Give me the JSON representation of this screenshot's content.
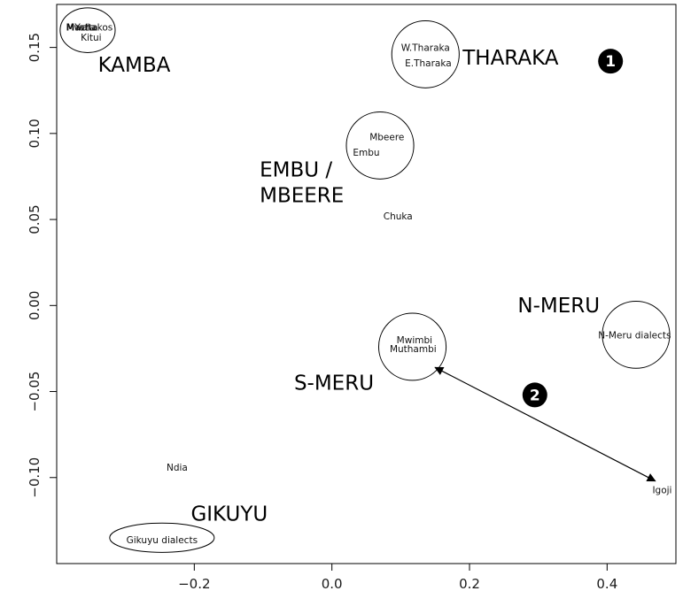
{
  "chart_data": {
    "type": "scatter",
    "title": "",
    "xlabel": "",
    "ylabel": "",
    "xlim": [
      -0.4,
      0.5
    ],
    "ylim": [
      -0.15,
      0.175
    ],
    "x_ticks": [
      -0.2,
      0.0,
      0.2,
      0.4
    ],
    "x_tick_labels": [
      "−0.2",
      "0.0",
      "0.2",
      "0.4"
    ],
    "y_ticks": [
      -0.1,
      -0.05,
      0.0,
      0.05,
      0.1,
      0.15
    ],
    "y_tick_labels": [
      "−0.10",
      "−0.05",
      "0.00",
      "0.05",
      "0.10",
      "0.15"
    ],
    "grid": false,
    "points": [
      {
        "label": "Mwala",
        "x": -0.365,
        "y": 0.162
      },
      {
        "label": "Yatta",
        "x": -0.357,
        "y": 0.162
      },
      {
        "label": "Machakos",
        "x": -0.352,
        "y": 0.162
      },
      {
        "label": "Kitui",
        "x": -0.35,
        "y": 0.156
      },
      {
        "label": "W.Tharaka",
        "x": 0.136,
        "y": 0.15
      },
      {
        "label": "E.Tharaka",
        "x": 0.14,
        "y": 0.141
      },
      {
        "label": "Mbeere",
        "x": 0.08,
        "y": 0.098
      },
      {
        "label": "Embu",
        "x": 0.05,
        "y": 0.089
      },
      {
        "label": "Chuka",
        "x": 0.096,
        "y": 0.052
      },
      {
        "label": "Mwimbi",
        "x": 0.12,
        "y": -0.02
      },
      {
        "label": "Muthambi",
        "x": 0.118,
        "y": -0.025
      },
      {
        "label": "N-Meru dialects",
        "x": 0.44,
        "y": -0.017
      },
      {
        "label": "Igoji",
        "x": 0.48,
        "y": -0.107
      },
      {
        "label": "Ndia",
        "x": -0.225,
        "y": -0.094
      },
      {
        "label": "Gikuyu dialects",
        "x": -0.247,
        "y": -0.136
      }
    ],
    "group_labels": [
      {
        "label": "KAMBA",
        "x": -0.34,
        "y": 0.136
      },
      {
        "label": "THARAKA",
        "x": 0.19,
        "y": 0.14
      },
      {
        "label": "EMBU /",
        "x": -0.105,
        "y": 0.075
      },
      {
        "label": "MBEERE",
        "x": -0.105,
        "y": 0.06
      },
      {
        "label": "N-MERU",
        "x": 0.27,
        "y": -0.004
      },
      {
        "label": "S-MERU",
        "x": -0.055,
        "y": -0.049
      },
      {
        "label": "GIKUYU",
        "x": -0.205,
        "y": -0.125
      }
    ],
    "clusters": [
      {
        "name": "Kamba",
        "cx": -0.355,
        "cy": 0.16,
        "rx": 0.04,
        "ry": 0.013
      },
      {
        "name": "Tharaka",
        "cx": 0.136,
        "cy": 0.146,
        "rx": 0.049,
        "ry": 0.0195
      },
      {
        "name": "Embu/Mbeere",
        "cx": 0.07,
        "cy": 0.093,
        "rx": 0.049,
        "ry": 0.0195
      },
      {
        "name": "S-Meru",
        "cx": 0.117,
        "cy": -0.024,
        "rx": 0.049,
        "ry": 0.0195
      },
      {
        "name": "N-Meru",
        "cx": 0.442,
        "cy": -0.017,
        "rx": 0.049,
        "ry": 0.0195
      },
      {
        "name": "Gikuyu",
        "cx": -0.247,
        "cy": -0.135,
        "rx": 0.076,
        "ry": 0.0085
      }
    ],
    "badges": [
      {
        "text": "1",
        "x": 0.405,
        "y": 0.142
      },
      {
        "text": "2",
        "x": 0.295,
        "y": -0.052
      }
    ],
    "arrow": {
      "from": {
        "x": 0.15,
        "y": -0.036
      },
      "to": {
        "x": 0.47,
        "y": -0.102
      },
      "double_headed": true
    },
    "colors": {
      "ink": "#000000",
      "background": "#ffffff"
    }
  }
}
